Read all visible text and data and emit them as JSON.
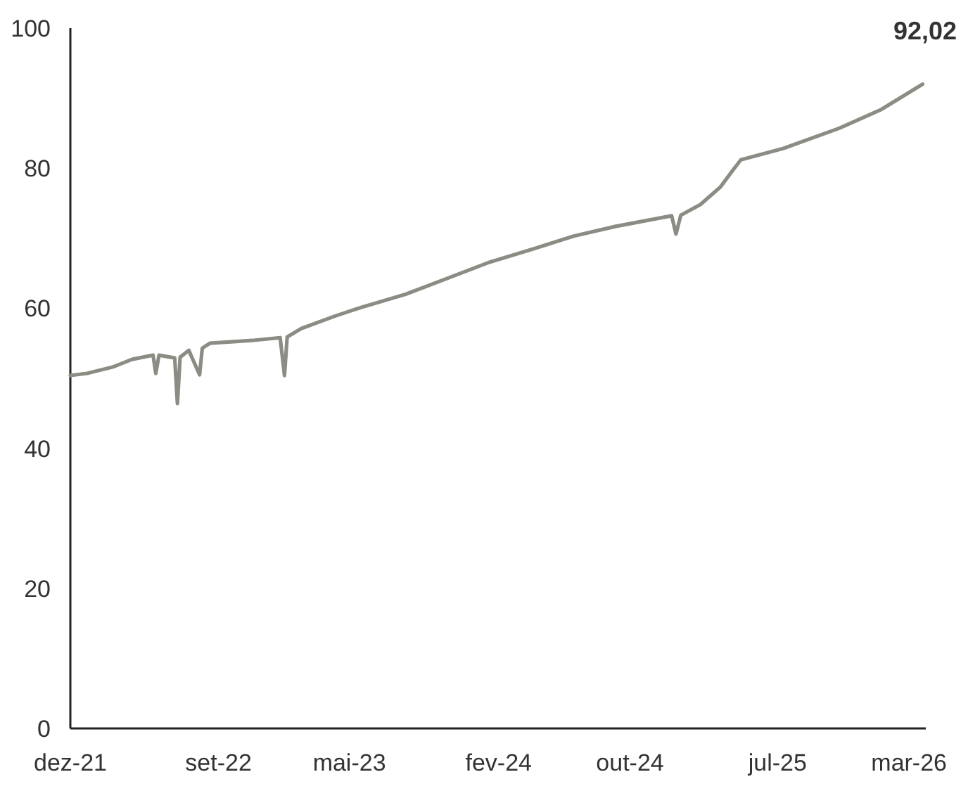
{
  "chart_data": {
    "type": "line",
    "title": "92,02",
    "x": [
      "2021-12-01",
      "2022-01-01",
      "2022-02-17",
      "2022-03-25",
      "2022-05-03",
      "2022-05-08",
      "2022-05-14",
      "2022-06-12",
      "2022-06-17",
      "2022-06-22",
      "2022-07-08",
      "2022-07-28",
      "2022-08-02",
      "2022-08-16",
      "2022-11-02",
      "2022-12-24",
      "2023-01-01",
      "2023-01-06",
      "2023-02-01",
      "2023-04-05",
      "2023-05-26",
      "2023-08-13",
      "2023-10-30",
      "2024-01-16",
      "2024-04-02",
      "2024-06-19",
      "2024-09-05",
      "2024-12-17",
      "2024-12-25",
      "2025-01-03",
      "2025-02-08",
      "2025-03-17",
      "2025-04-12",
      "2025-04-24",
      "2025-07-11",
      "2025-10-23",
      "2026-01-09",
      "2026-03-26"
    ],
    "series": [
      {
        "color": "#8c8c84",
        "values": [
          50.4,
          50.7,
          51.6,
          52.7,
          53.3,
          50.7,
          53.3,
          52.9,
          46.4,
          53.0,
          54.0,
          50.5,
          54.3,
          55.0,
          55.4,
          55.8,
          50.4,
          55.9,
          57.1,
          58.9,
          60.2,
          62.0,
          64.3,
          66.6,
          68.4,
          70.3,
          71.7,
          73.2,
          70.6,
          73.3,
          74.8,
          77.3,
          80.0,
          81.2,
          82.8,
          85.7,
          88.4,
          92.0
        ]
      }
    ],
    "xlim": [
      "2021-12-01",
      "2026-04-01"
    ],
    "xticks": [
      {
        "value": "2021-12-01",
        "label": "dez-21"
      },
      {
        "value": "2022-09-01",
        "label": "set-22"
      },
      {
        "value": "2023-05-01",
        "label": "mai-23"
      },
      {
        "value": "2024-02-01",
        "label": "fev-24"
      },
      {
        "value": "2024-10-01",
        "label": "out-24"
      },
      {
        "value": "2025-07-01",
        "label": "jul-25"
      },
      {
        "value": "2026-03-01",
        "label": "mar-26"
      }
    ],
    "ylim": [
      0,
      100
    ],
    "yticks": [
      0,
      20,
      40,
      60,
      80,
      100
    ],
    "grid": false,
    "marker": "none",
    "line_style": "solid"
  }
}
